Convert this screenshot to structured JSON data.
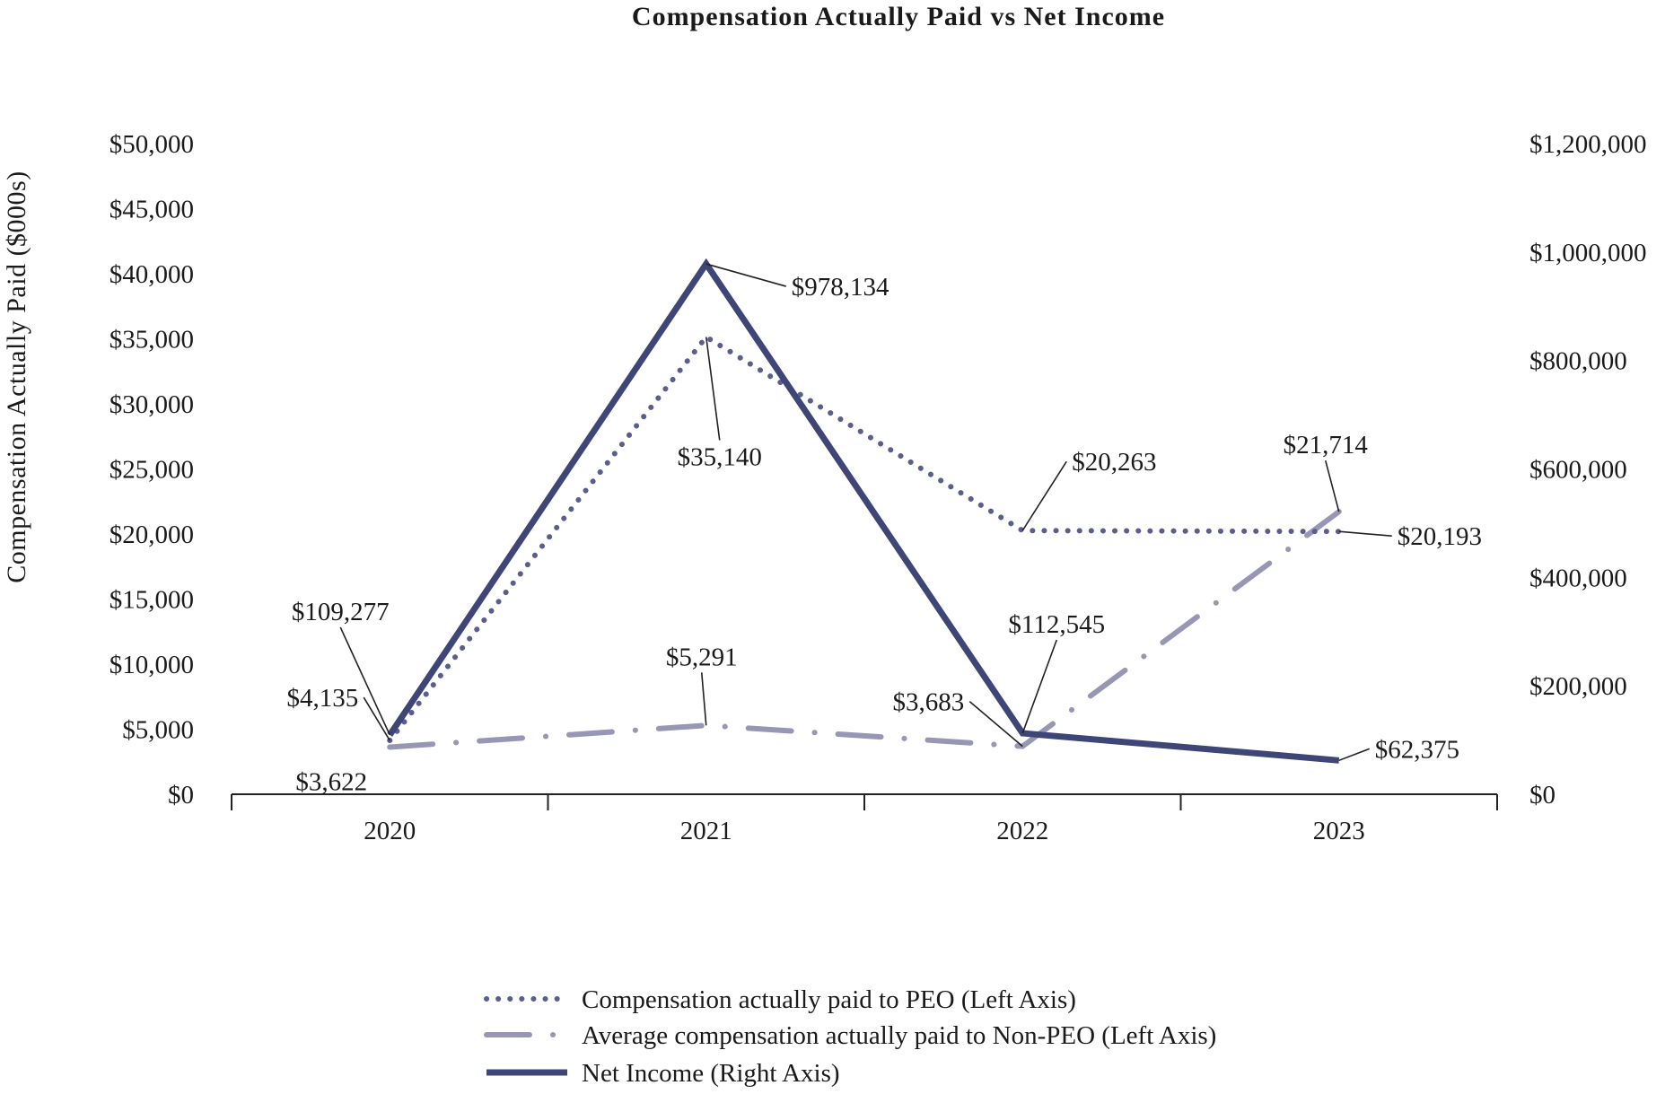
{
  "chart_data": {
    "type": "line",
    "title": "Compensation Actually Paid vs Net Income",
    "categories": [
      "2020",
      "2021",
      "2022",
      "2023"
    ],
    "y_left": {
      "label": "Compensation Actually Paid ($000s)",
      "range": [
        0,
        50000
      ],
      "ticks": [
        "$0",
        "$5,000",
        "$10,000",
        "$15,000",
        "$20,000",
        "$25,000",
        "$30,000",
        "$35,000",
        "$40,000",
        "$45,000",
        "$50,000"
      ]
    },
    "y_right": {
      "label": "",
      "range": [
        0,
        1200000
      ],
      "ticks": [
        "$0",
        "$200,000",
        "$400,000",
        "$600,000",
        "$800,000",
        "$1,000,000",
        "$1,200,000"
      ]
    },
    "grid": false,
    "legend_position": "bottom-center",
    "series": [
      {
        "name": "Compensation actually paid to PEO (Left Axis)",
        "axis": "left",
        "style": "dotted",
        "color": "#5a5e8c",
        "values": [
          4135,
          35140,
          20263,
          20193
        ],
        "labels": [
          "$4,135",
          "$35,140",
          "$20,263",
          "$20,193"
        ]
      },
      {
        "name": "Average compensation actually paid to Non-PEO (Left Axis)",
        "axis": "left",
        "style": "dash-dot",
        "color": "#9797b5",
        "values": [
          3622,
          5291,
          3683,
          21714
        ],
        "labels": [
          "$3,622",
          "$5,291",
          "$3,683",
          "$21,714"
        ]
      },
      {
        "name": "Net Income (Right Axis)",
        "axis": "right",
        "style": "solid",
        "color": "#3e4677",
        "values": [
          109277,
          978134,
          112545,
          62375
        ],
        "labels": [
          "$109,277",
          "$978,134",
          "$112,545",
          "$62,375"
        ]
      }
    ]
  }
}
